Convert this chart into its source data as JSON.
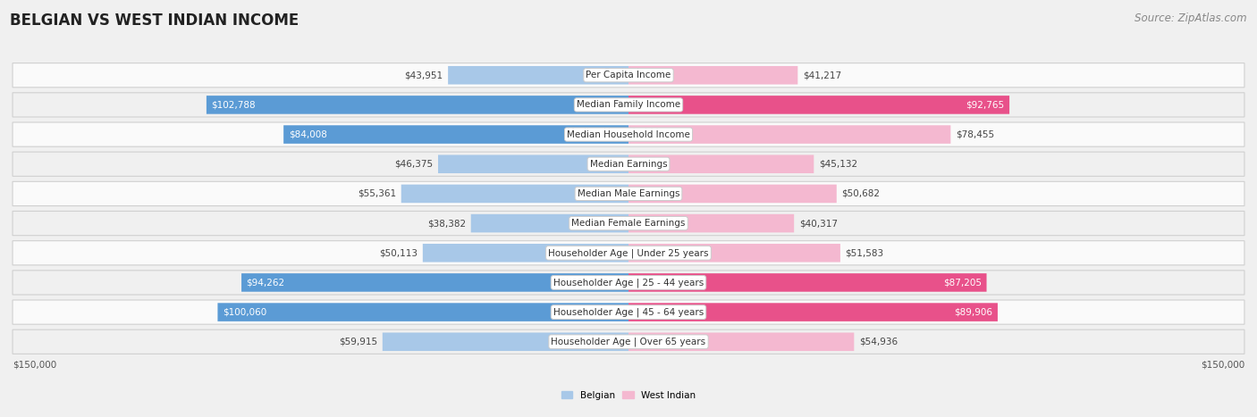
{
  "title": "BELGIAN VS WEST INDIAN INCOME",
  "source": "Source: ZipAtlas.com",
  "categories": [
    "Per Capita Income",
    "Median Family Income",
    "Median Household Income",
    "Median Earnings",
    "Median Male Earnings",
    "Median Female Earnings",
    "Householder Age | Under 25 years",
    "Householder Age | 25 - 44 years",
    "Householder Age | 45 - 64 years",
    "Householder Age | Over 65 years"
  ],
  "belgian_values": [
    43951,
    102788,
    84008,
    46375,
    55361,
    38382,
    50113,
    94262,
    100060,
    59915
  ],
  "westindian_values": [
    41217,
    92765,
    78455,
    45132,
    50682,
    40317,
    51583,
    87205,
    89906,
    54936
  ],
  "belgian_labels": [
    "$43,951",
    "$102,788",
    "$84,008",
    "$46,375",
    "$55,361",
    "$38,382",
    "$50,113",
    "$94,262",
    "$100,060",
    "$59,915"
  ],
  "westindian_labels": [
    "$41,217",
    "$92,765",
    "$78,455",
    "$45,132",
    "$50,682",
    "$40,317",
    "$51,583",
    "$87,205",
    "$89,906",
    "$54,936"
  ],
  "max_value": 150000,
  "belgian_bar_color_low": "#a8c8e8",
  "belgian_bar_color_high": "#5b9bd5",
  "westindian_bar_color_low": "#f4b8d0",
  "westindian_bar_color_high": "#e8518a",
  "belgian_label_threshold": 80000,
  "westindian_label_threshold": 80000,
  "background_color": "#f0f0f0",
  "row_even_color": "#fafafa",
  "row_odd_color": "#f0f0f0",
  "title_fontsize": 12,
  "source_fontsize": 8.5,
  "category_fontsize": 7.5,
  "value_fontsize": 7.5,
  "axis_label": "$150,000",
  "legend_belgian": "Belgian",
  "legend_westindian": "West Indian"
}
